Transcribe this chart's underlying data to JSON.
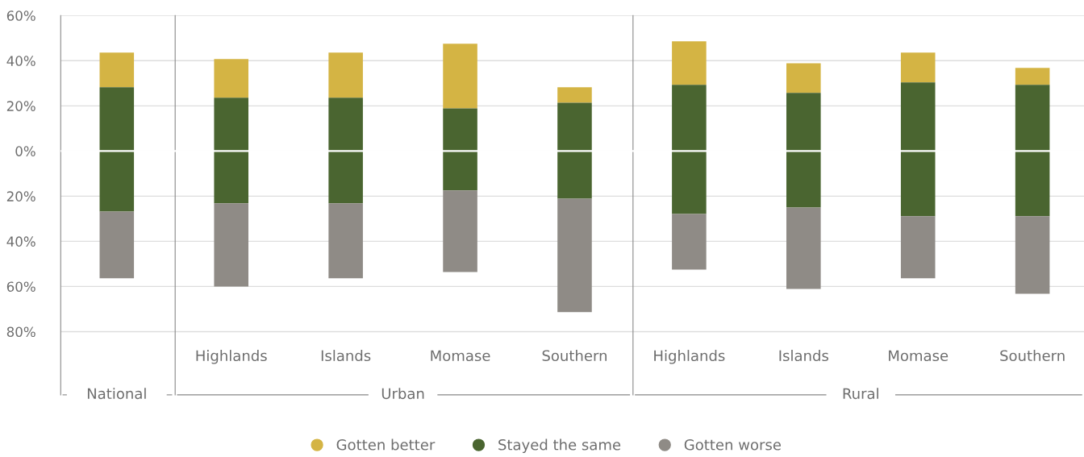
{
  "chart_data": {
    "type": "bar",
    "categories": [
      null,
      "Highlands",
      "Islands",
      "Momase",
      "Southern",
      "Highlands",
      "Islands",
      "Momase",
      "Southern"
    ],
    "series": [
      {
        "name": "Gotten better",
        "color": "#d4b444",
        "base": [
          28.2,
          23.6,
          23.6,
          18.9,
          21.4,
          29.3,
          25.7,
          30.4,
          29.3
        ],
        "values": [
          15.4,
          17.1,
          20.0,
          28.6,
          6.8,
          19.3,
          13.2,
          13.2,
          7.5
        ]
      },
      {
        "name": "Stayed the same",
        "color": "#4a6530",
        "base": [
          -26.8,
          -23.2,
          -23.2,
          -17.5,
          -21.1,
          -27.9,
          -25.0,
          -28.9,
          -28.9
        ],
        "values": [
          55.0,
          46.8,
          46.8,
          36.4,
          42.5,
          57.2,
          50.7,
          59.3,
          58.2
        ]
      },
      {
        "name": "Gotten worse",
        "color": "#8f8b86",
        "base": [
          -26.8,
          -23.2,
          -23.2,
          -17.5,
          -21.1,
          -27.9,
          -25.0,
          -28.9,
          -28.9
        ],
        "values": [
          -29.6,
          -36.8,
          -33.2,
          -36.1,
          -50.3,
          -24.6,
          -36.1,
          -27.5,
          -34.3
        ]
      }
    ],
    "ylim": [
      -108,
      60
    ],
    "yticks": [
      {
        "value": -80,
        "label": "80%"
      },
      {
        "value": -60,
        "label": "60%"
      },
      {
        "value": -40,
        "label": "40%"
      },
      {
        "value": -20,
        "label": "20%"
      },
      {
        "value": 0,
        "label": "0%"
      },
      {
        "value": 20,
        "label": "20%"
      },
      {
        "value": 40,
        "label": "40%"
      },
      {
        "value": 60,
        "label": "60%"
      }
    ],
    "ref_lines": [
      {
        "axis": "y",
        "value": 0,
        "color": "#ffffff"
      }
    ],
    "annotations": [
      "National",
      "Urban",
      "Rural"
    ],
    "grid": "y",
    "legend": "bottom",
    "marker": "circle"
  }
}
